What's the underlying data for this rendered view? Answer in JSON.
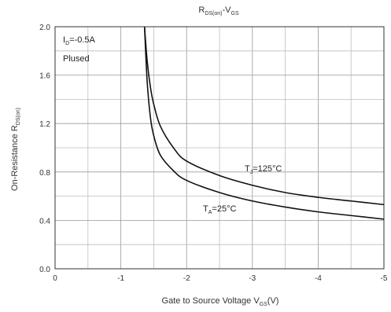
{
  "chart_data": {
    "type": "line",
    "title": "RDS(on)-VGS",
    "title_parts": {
      "r": "R",
      "r_sub": "DS(on)",
      "mid": "-V",
      "v_sub": "GS"
    },
    "xlabel": "Gate to Source Voltage VGS(V)",
    "xlabel_parts": {
      "main": "Gate to Source Voltage V",
      "sub": "GS",
      "tail": "(V)"
    },
    "ylabel": "On-Resistance RDS(on)",
    "ylabel_parts": {
      "main": "On-Resistance R",
      "sub": "DS(on)"
    },
    "xlim": [
      0,
      -5
    ],
    "ylim": [
      0,
      2.0
    ],
    "grid": true,
    "x_ticks": [
      {
        "value": 0,
        "label": "0"
      },
      {
        "value": -1,
        "label": "-1"
      },
      {
        "value": -2,
        "label": "-2"
      },
      {
        "value": -3,
        "label": "-3"
      },
      {
        "value": -4,
        "label": "-4"
      },
      {
        "value": -5,
        "label": "-5"
      }
    ],
    "y_ticks": [
      {
        "value": 0.0,
        "label": "0.0"
      },
      {
        "value": 0.4,
        "label": "0.4"
      },
      {
        "value": 0.8,
        "label": "0.8"
      },
      {
        "value": 1.2,
        "label": "1.2"
      },
      {
        "value": 1.6,
        "label": "1.6"
      },
      {
        "value": 2.0,
        "label": "2.0"
      }
    ],
    "series": [
      {
        "name": "TJ=125°C",
        "label_parts": {
          "main": "T",
          "sub": "J",
          "tail": "=125°C"
        },
        "color": "#111111",
        "x": [
          -1.36,
          -1.4,
          -1.45,
          -1.5,
          -1.6,
          -1.8,
          -2.0,
          -2.5,
          -3.0,
          -3.5,
          -4.0,
          -4.5,
          -5.0
        ],
        "y": [
          2.0,
          1.72,
          1.5,
          1.36,
          1.18,
          1.0,
          0.89,
          0.77,
          0.69,
          0.63,
          0.59,
          0.56,
          0.53
        ]
      },
      {
        "name": "TA=25°C",
        "label_parts": {
          "main": "T",
          "sub": "A",
          "tail": "=25°C"
        },
        "color": "#111111",
        "x": [
          -1.36,
          -1.4,
          -1.45,
          -1.5,
          -1.6,
          -1.8,
          -2.0,
          -2.5,
          -3.0,
          -3.5,
          -4.0,
          -4.5,
          -5.0
        ],
        "y": [
          2.0,
          1.55,
          1.25,
          1.1,
          0.94,
          0.81,
          0.73,
          0.63,
          0.56,
          0.51,
          0.47,
          0.44,
          0.41
        ]
      }
    ],
    "annotations": [
      {
        "id": "id",
        "parts": {
          "main": "I",
          "sub": "D",
          "tail": "=-0.5A"
        }
      },
      {
        "id": "plused",
        "text": "Plused"
      }
    ]
  }
}
